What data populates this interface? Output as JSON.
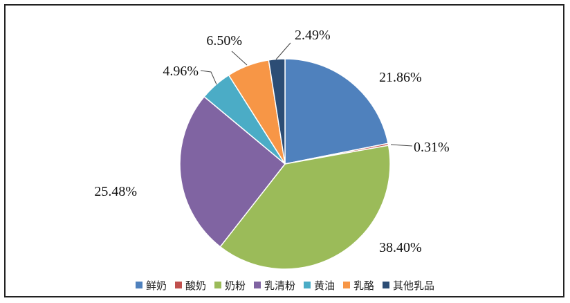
{
  "chart_data": {
    "type": "pie",
    "title": "",
    "legend_position": "bottom",
    "start_angle_deg": 0,
    "slices": [
      {
        "name": "鲜奶",
        "value": 21.86,
        "label": "21.86%",
        "color": "#4f81bd"
      },
      {
        "name": "酸奶",
        "value": 0.31,
        "label": "0.31%",
        "color": "#c0504d"
      },
      {
        "name": "奶粉",
        "value": 38.4,
        "label": "38.40%",
        "color": "#9bbb59"
      },
      {
        "name": "乳清粉",
        "value": 25.48,
        "label": "25.48%",
        "color": "#8064a2"
      },
      {
        "name": "黄油",
        "value": 4.96,
        "label": "4.96%",
        "color": "#4bacc6"
      },
      {
        "name": "乳酪",
        "value": 6.5,
        "label": "6.50%",
        "color": "#f79646"
      },
      {
        "name": "其他乳品",
        "value": 2.49,
        "label": "2.49%",
        "color": "#2c4d75"
      }
    ]
  }
}
